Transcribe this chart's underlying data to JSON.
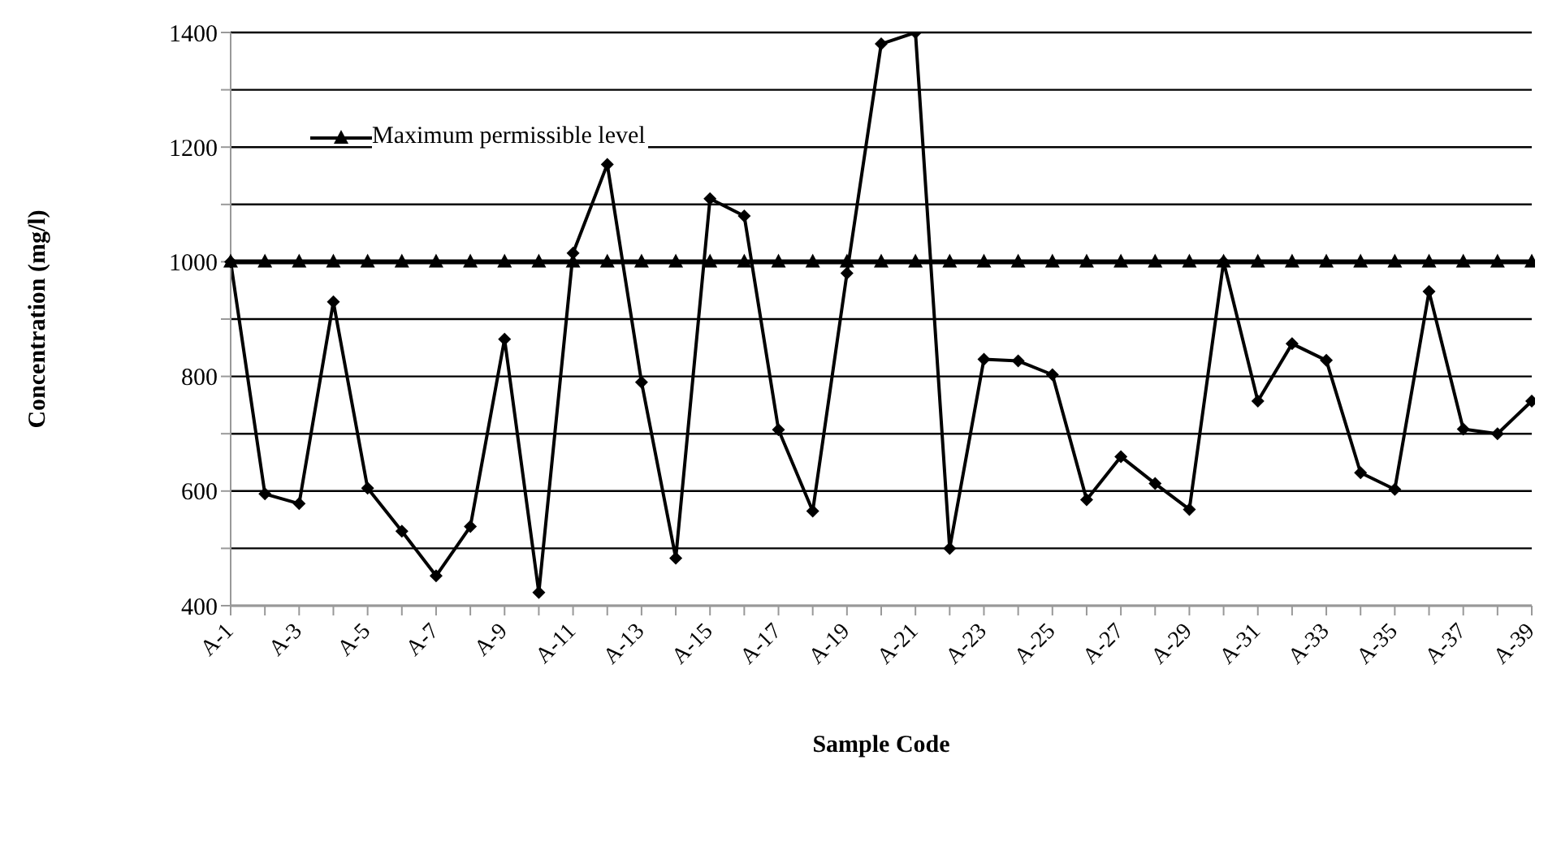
{
  "chart_data": {
    "type": "line",
    "xlabel": "Sample Code",
    "ylabel": "Concentration (mg/l)",
    "categories": [
      "A-1",
      null,
      "A-3",
      null,
      "A-5",
      null,
      "A-7",
      null,
      "A-9",
      null,
      "A-11",
      null,
      "A-13",
      null,
      "A-15",
      null,
      "A-17",
      null,
      "A-19",
      null,
      "A-21",
      null,
      "A-23",
      null,
      "A-25",
      null,
      "A-27",
      null,
      "A-29",
      null,
      "A-31",
      null,
      "A-33",
      null,
      "A-35",
      null,
      "A-37",
      null,
      "A-39"
    ],
    "series": [
      {
        "color": "#000000",
        "marker": "diamond",
        "values": [
          1000,
          595,
          578,
          930,
          605,
          530,
          452,
          538,
          865,
          423,
          1015,
          1170,
          790,
          483,
          1110,
          1080,
          707,
          565,
          980,
          1380,
          1400,
          500,
          830,
          827,
          803,
          585,
          660,
          613,
          568,
          1000,
          757,
          857,
          828,
          632,
          603,
          948,
          708,
          700,
          757
        ]
      },
      {
        "name": "Maximum permissible level",
        "color": "#000000",
        "marker": "triangle",
        "values": [
          1000,
          1000,
          1000,
          1000,
          1000,
          1000,
          1000,
          1000,
          1000,
          1000,
          1000,
          1000,
          1000,
          1000,
          1000,
          1000,
          1000,
          1000,
          1000,
          1000,
          1000,
          1000,
          1000,
          1000,
          1000,
          1000,
          1000,
          1000,
          1000,
          1000,
          1000,
          1000,
          1000,
          1000,
          1000,
          1000,
          1000,
          1000,
          1000
        ]
      }
    ],
    "ylim": [
      400,
      1400
    ],
    "yticks": [
      400,
      {
        "value": 500,
        "label": null
      },
      600,
      {
        "value": 700,
        "label": null
      },
      800,
      {
        "value": 900,
        "label": null
      },
      1000,
      {
        "value": 1100,
        "label": null
      },
      1200,
      {
        "value": 1300,
        "label": null
      },
      1400
    ],
    "grid": "y",
    "legend": "top left",
    "line_style": "solid"
  }
}
